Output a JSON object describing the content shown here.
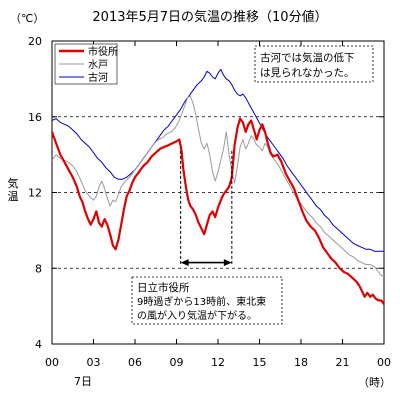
{
  "chart_data": {
    "type": "line",
    "title": "2013年5月7日の気温の推移（10分値）",
    "ylabel": "気温",
    "yunit": "（℃）",
    "xunit": "（時）",
    "date_label": "7日",
    "ylim": [
      4,
      20
    ],
    "yticks": [
      "4",
      "8",
      "12",
      "16",
      "20"
    ],
    "xticks": [
      "00",
      "03",
      "06",
      "09",
      "12",
      "15",
      "18",
      "21",
      "00"
    ],
    "xlim": [
      0,
      24
    ],
    "grid": "dashed horizontal lines at 8, 12, 16",
    "legend_position": "top-left",
    "series": [
      {
        "name": "市役所",
        "color": "#e00000",
        "points": [
          [
            0.0,
            15.2
          ],
          [
            0.3,
            14.6
          ],
          [
            0.6,
            14.0
          ],
          [
            0.9,
            13.6
          ],
          [
            1.2,
            13.2
          ],
          [
            1.5,
            12.8
          ],
          [
            1.8,
            12.3
          ],
          [
            2.0,
            11.8
          ],
          [
            2.2,
            11.5
          ],
          [
            2.4,
            11.0
          ],
          [
            2.6,
            10.6
          ],
          [
            2.8,
            10.3
          ],
          [
            3.0,
            10.6
          ],
          [
            3.2,
            11.0
          ],
          [
            3.4,
            10.4
          ],
          [
            3.6,
            10.2
          ],
          [
            3.8,
            10.6
          ],
          [
            4.0,
            10.3
          ],
          [
            4.2,
            9.8
          ],
          [
            4.4,
            9.2
          ],
          [
            4.6,
            9.0
          ],
          [
            4.8,
            9.5
          ],
          [
            5.0,
            10.3
          ],
          [
            5.2,
            11.1
          ],
          [
            5.4,
            11.8
          ],
          [
            5.6,
            12.1
          ],
          [
            5.8,
            12.5
          ],
          [
            6.0,
            12.8
          ],
          [
            6.3,
            13.1
          ],
          [
            6.6,
            13.4
          ],
          [
            6.9,
            13.6
          ],
          [
            7.2,
            13.9
          ],
          [
            7.5,
            14.1
          ],
          [
            7.8,
            14.3
          ],
          [
            8.1,
            14.4
          ],
          [
            8.4,
            14.5
          ],
          [
            8.7,
            14.6
          ],
          [
            9.0,
            14.7
          ],
          [
            9.2,
            14.8
          ],
          [
            9.35,
            14.3
          ],
          [
            9.5,
            13.2
          ],
          [
            9.7,
            12.2
          ],
          [
            9.85,
            11.6
          ],
          [
            10.0,
            11.3
          ],
          [
            10.2,
            11.1
          ],
          [
            10.4,
            10.8
          ],
          [
            10.6,
            10.4
          ],
          [
            10.8,
            10.1
          ],
          [
            11.0,
            9.8
          ],
          [
            11.2,
            10.3
          ],
          [
            11.4,
            10.8
          ],
          [
            11.6,
            11.0
          ],
          [
            11.8,
            10.7
          ],
          [
            12.0,
            11.2
          ],
          [
            12.2,
            11.6
          ],
          [
            12.4,
            11.9
          ],
          [
            12.6,
            12.1
          ],
          [
            12.8,
            12.3
          ],
          [
            13.0,
            12.8
          ],
          [
            13.2,
            14.5
          ],
          [
            13.4,
            15.4
          ],
          [
            13.6,
            15.9
          ],
          [
            13.8,
            15.7
          ],
          [
            14.0,
            15.2
          ],
          [
            14.2,
            15.6
          ],
          [
            14.4,
            15.8
          ],
          [
            14.6,
            15.3
          ],
          [
            14.8,
            14.8
          ],
          [
            15.0,
            15.3
          ],
          [
            15.2,
            15.6
          ],
          [
            15.4,
            15.2
          ],
          [
            15.6,
            14.6
          ],
          [
            15.8,
            14.1
          ],
          [
            16.0,
            13.9
          ],
          [
            16.3,
            14.0
          ],
          [
            16.6,
            13.6
          ],
          [
            16.9,
            13.0
          ],
          [
            17.2,
            12.6
          ],
          [
            17.5,
            12.2
          ],
          [
            17.8,
            11.6
          ],
          [
            18.1,
            11.0
          ],
          [
            18.4,
            10.5
          ],
          [
            18.7,
            10.2
          ],
          [
            19.0,
            10.0
          ],
          [
            19.3,
            9.6
          ],
          [
            19.6,
            9.1
          ],
          [
            19.9,
            8.8
          ],
          [
            20.2,
            8.5
          ],
          [
            20.5,
            8.3
          ],
          [
            20.8,
            8.0
          ],
          [
            21.1,
            7.8
          ],
          [
            21.4,
            7.7
          ],
          [
            21.7,
            7.5
          ],
          [
            22.0,
            7.3
          ],
          [
            22.2,
            7.1
          ],
          [
            22.4,
            6.8
          ],
          [
            22.6,
            6.5
          ],
          [
            22.8,
            6.7
          ],
          [
            23.0,
            6.5
          ],
          [
            23.2,
            6.6
          ],
          [
            23.4,
            6.4
          ],
          [
            23.6,
            6.3
          ],
          [
            23.8,
            6.3
          ],
          [
            24.0,
            6.1
          ]
        ]
      },
      {
        "name": "水戸",
        "color": "#9a9a9a",
        "points": [
          [
            0.0,
            13.7
          ],
          [
            0.3,
            14.0
          ],
          [
            0.6,
            13.8
          ],
          [
            0.9,
            13.7
          ],
          [
            1.2,
            13.6
          ],
          [
            1.5,
            13.4
          ],
          [
            1.8,
            13.1
          ],
          [
            2.1,
            12.6
          ],
          [
            2.4,
            12.1
          ],
          [
            2.7,
            11.8
          ],
          [
            3.0,
            11.6
          ],
          [
            3.2,
            11.8
          ],
          [
            3.4,
            12.3
          ],
          [
            3.6,
            12.6
          ],
          [
            3.8,
            12.2
          ],
          [
            4.0,
            11.7
          ],
          [
            4.2,
            11.3
          ],
          [
            4.4,
            11.6
          ],
          [
            4.6,
            11.5
          ],
          [
            4.8,
            11.9
          ],
          [
            5.0,
            12.3
          ],
          [
            5.3,
            12.6
          ],
          [
            5.6,
            12.8
          ],
          [
            5.9,
            13.1
          ],
          [
            6.2,
            13.4
          ],
          [
            6.5,
            13.7
          ],
          [
            6.8,
            14.0
          ],
          [
            7.1,
            14.3
          ],
          [
            7.4,
            14.6
          ],
          [
            7.7,
            14.8
          ],
          [
            8.0,
            14.9
          ],
          [
            8.3,
            15.1
          ],
          [
            8.6,
            15.2
          ],
          [
            8.9,
            15.4
          ],
          [
            9.2,
            15.8
          ],
          [
            9.4,
            16.2
          ],
          [
            9.6,
            16.6
          ],
          [
            9.8,
            17.0
          ],
          [
            10.0,
            17.1
          ],
          [
            10.2,
            16.7
          ],
          [
            10.4,
            16.1
          ],
          [
            10.6,
            15.3
          ],
          [
            10.8,
            14.6
          ],
          [
            11.0,
            14.3
          ],
          [
            11.2,
            14.6
          ],
          [
            11.4,
            14.0
          ],
          [
            11.6,
            13.1
          ],
          [
            11.8,
            12.6
          ],
          [
            12.0,
            13.1
          ],
          [
            12.2,
            13.7
          ],
          [
            12.4,
            14.3
          ],
          [
            12.6,
            15.2
          ],
          [
            12.8,
            14.0
          ],
          [
            13.0,
            13.1
          ],
          [
            13.2,
            12.5
          ],
          [
            13.4,
            13.4
          ],
          [
            13.6,
            14.4
          ],
          [
            13.8,
            14.8
          ],
          [
            14.0,
            14.3
          ],
          [
            14.2,
            14.6
          ],
          [
            14.4,
            15.0
          ],
          [
            14.6,
            14.8
          ],
          [
            14.8,
            14.5
          ],
          [
            15.0,
            14.4
          ],
          [
            15.2,
            14.2
          ],
          [
            15.4,
            14.6
          ],
          [
            15.6,
            14.4
          ],
          [
            15.8,
            14.0
          ],
          [
            16.1,
            13.7
          ],
          [
            16.4,
            13.4
          ],
          [
            16.7,
            13.0
          ],
          [
            17.0,
            12.6
          ],
          [
            17.3,
            12.2
          ],
          [
            17.6,
            11.8
          ],
          [
            17.9,
            11.5
          ],
          [
            18.2,
            11.2
          ],
          [
            18.5,
            10.9
          ],
          [
            18.8,
            10.7
          ],
          [
            19.1,
            10.4
          ],
          [
            19.4,
            10.2
          ],
          [
            19.7,
            9.9
          ],
          [
            20.0,
            9.7
          ],
          [
            20.3,
            9.5
          ],
          [
            20.6,
            9.3
          ],
          [
            20.9,
            9.1
          ],
          [
            21.2,
            8.9
          ],
          [
            21.5,
            8.7
          ],
          [
            21.8,
            8.6
          ],
          [
            22.1,
            8.4
          ],
          [
            22.4,
            8.3
          ],
          [
            22.7,
            8.2
          ],
          [
            23.0,
            8.2
          ],
          [
            23.3,
            8.1
          ],
          [
            23.6,
            7.8
          ],
          [
            23.8,
            7.6
          ],
          [
            24.0,
            7.6
          ]
        ]
      },
      {
        "name": "古河",
        "color": "#0000cc",
        "points": [
          [
            0.0,
            15.8
          ],
          [
            0.3,
            15.9
          ],
          [
            0.6,
            15.7
          ],
          [
            0.9,
            15.6
          ],
          [
            1.2,
            15.5
          ],
          [
            1.5,
            15.3
          ],
          [
            1.8,
            15.1
          ],
          [
            2.1,
            14.8
          ],
          [
            2.4,
            14.6
          ],
          [
            2.7,
            14.4
          ],
          [
            3.0,
            14.1
          ],
          [
            3.3,
            13.8
          ],
          [
            3.6,
            13.6
          ],
          [
            3.9,
            13.3
          ],
          [
            4.2,
            13.1
          ],
          [
            4.5,
            12.8
          ],
          [
            4.8,
            12.7
          ],
          [
            5.1,
            12.7
          ],
          [
            5.4,
            12.8
          ],
          [
            5.7,
            13.0
          ],
          [
            6.0,
            13.2
          ],
          [
            6.3,
            13.5
          ],
          [
            6.6,
            13.8
          ],
          [
            6.9,
            14.1
          ],
          [
            7.2,
            14.4
          ],
          [
            7.5,
            14.7
          ],
          [
            7.8,
            15.0
          ],
          [
            8.1,
            15.3
          ],
          [
            8.4,
            15.5
          ],
          [
            8.7,
            15.8
          ],
          [
            9.0,
            16.1
          ],
          [
            9.3,
            16.4
          ],
          [
            9.6,
            16.8
          ],
          [
            9.9,
            17.1
          ],
          [
            10.2,
            17.4
          ],
          [
            10.5,
            17.7
          ],
          [
            10.8,
            17.9
          ],
          [
            11.0,
            18.1
          ],
          [
            11.2,
            18.4
          ],
          [
            11.4,
            18.3
          ],
          [
            11.6,
            18.1
          ],
          [
            11.8,
            18.0
          ],
          [
            12.0,
            18.3
          ],
          [
            12.2,
            18.5
          ],
          [
            12.4,
            18.2
          ],
          [
            12.6,
            18.0
          ],
          [
            12.8,
            17.9
          ],
          [
            13.0,
            17.7
          ],
          [
            13.2,
            17.4
          ],
          [
            13.4,
            17.2
          ],
          [
            13.6,
            17.1
          ],
          [
            13.8,
            17.2
          ],
          [
            14.0,
            17.0
          ],
          [
            14.3,
            16.6
          ],
          [
            14.6,
            16.2
          ],
          [
            14.9,
            15.8
          ],
          [
            15.2,
            15.4
          ],
          [
            15.5,
            15.0
          ],
          [
            15.8,
            14.7
          ],
          [
            16.1,
            14.4
          ],
          [
            16.4,
            14.1
          ],
          [
            16.7,
            13.8
          ],
          [
            17.0,
            13.4
          ],
          [
            17.3,
            13.1
          ],
          [
            17.6,
            12.8
          ],
          [
            17.9,
            12.5
          ],
          [
            18.2,
            12.2
          ],
          [
            18.5,
            11.9
          ],
          [
            18.8,
            11.6
          ],
          [
            19.1,
            11.3
          ],
          [
            19.4,
            11.1
          ],
          [
            19.7,
            10.8
          ],
          [
            20.0,
            10.6
          ],
          [
            20.3,
            10.3
          ],
          [
            20.6,
            10.1
          ],
          [
            20.9,
            9.9
          ],
          [
            21.2,
            9.7
          ],
          [
            21.5,
            9.5
          ],
          [
            21.8,
            9.3
          ],
          [
            22.1,
            9.2
          ],
          [
            22.4,
            9.1
          ],
          [
            22.7,
            9.0
          ],
          [
            23.0,
            9.0
          ],
          [
            23.3,
            8.9
          ],
          [
            23.6,
            8.9
          ],
          [
            24.0,
            8.9
          ]
        ]
      }
    ],
    "annotations": {
      "furukawa_note": [
        "古河では気温の低下",
        "は見られなかった。"
      ],
      "city_note": [
        "日立市役所",
        "9時過ぎから13時前、東北東",
        "の風が入り気温が下がる。"
      ],
      "period": [
        9.3,
        13.0
      ]
    }
  }
}
